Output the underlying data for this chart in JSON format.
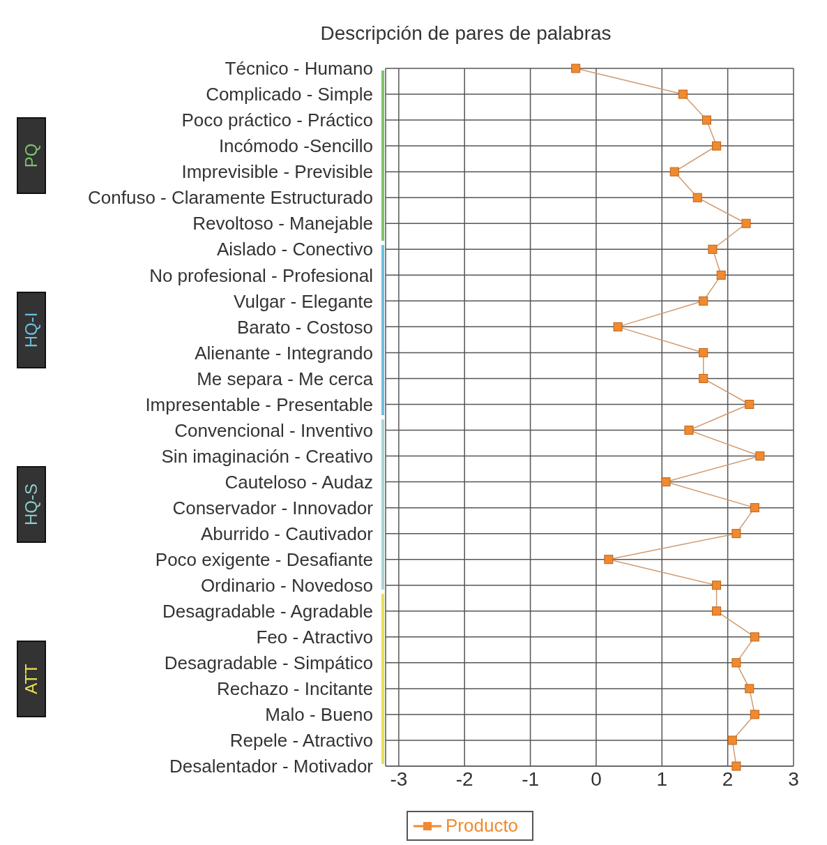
{
  "chart_data": {
    "type": "line",
    "orientation": "horizontal",
    "title": "Descripción de pares de palabras",
    "categories": [
      "Técnico - Humano",
      "Complicado - Simple",
      "Poco práctico - Práctico",
      "Incómodo -Sencillo",
      "Imprevisible - Previsible",
      "Confuso - Claramente Estructurado",
      "Revoltoso - Manejable",
      "Aislado - Conectivo",
      "No profesional - Profesional",
      "Vulgar - Elegante",
      "Barato - Costoso",
      "Alienante - Integrando",
      "Me separa   - Me cerca",
      "Impresentable   - Presentable",
      "Convencional - Inventivo",
      "Sin imaginación - Creativo",
      "Cauteloso - Audaz",
      "Conservador - Innovador",
      "Aburrido - Cautivador",
      "Poco exigente - Desafiante",
      "Ordinario - Novedoso",
      "Desagradable - Agradable",
      "Feo - Atractivo",
      "Desagradable - Simpático",
      "Rechazo - Incitante",
      "Malo - Bueno",
      "Repele  - Atractivo",
      "Desalentador - Motivador"
    ],
    "series": [
      {
        "name": "Producto",
        "color": "#f08a30",
        "values": [
          -0.31,
          1.32,
          1.68,
          1.83,
          1.19,
          1.54,
          2.28,
          1.77,
          1.9,
          1.63,
          0.33,
          1.63,
          1.63,
          2.33,
          1.41,
          2.49,
          1.06,
          2.41,
          2.13,
          0.19,
          1.83,
          1.83,
          2.41,
          2.13,
          2.33,
          2.41,
          2.07,
          2.13
        ]
      }
    ],
    "xlim": [
      -3.2,
      3
    ],
    "xticks": [
      -3,
      -2,
      -1,
      0,
      1,
      2,
      3
    ],
    "grid": true,
    "marker": "square",
    "legend": "bottom",
    "annotations": [
      "PQ",
      "HQ-I",
      "HQ-S",
      "ATT"
    ]
  }
}
